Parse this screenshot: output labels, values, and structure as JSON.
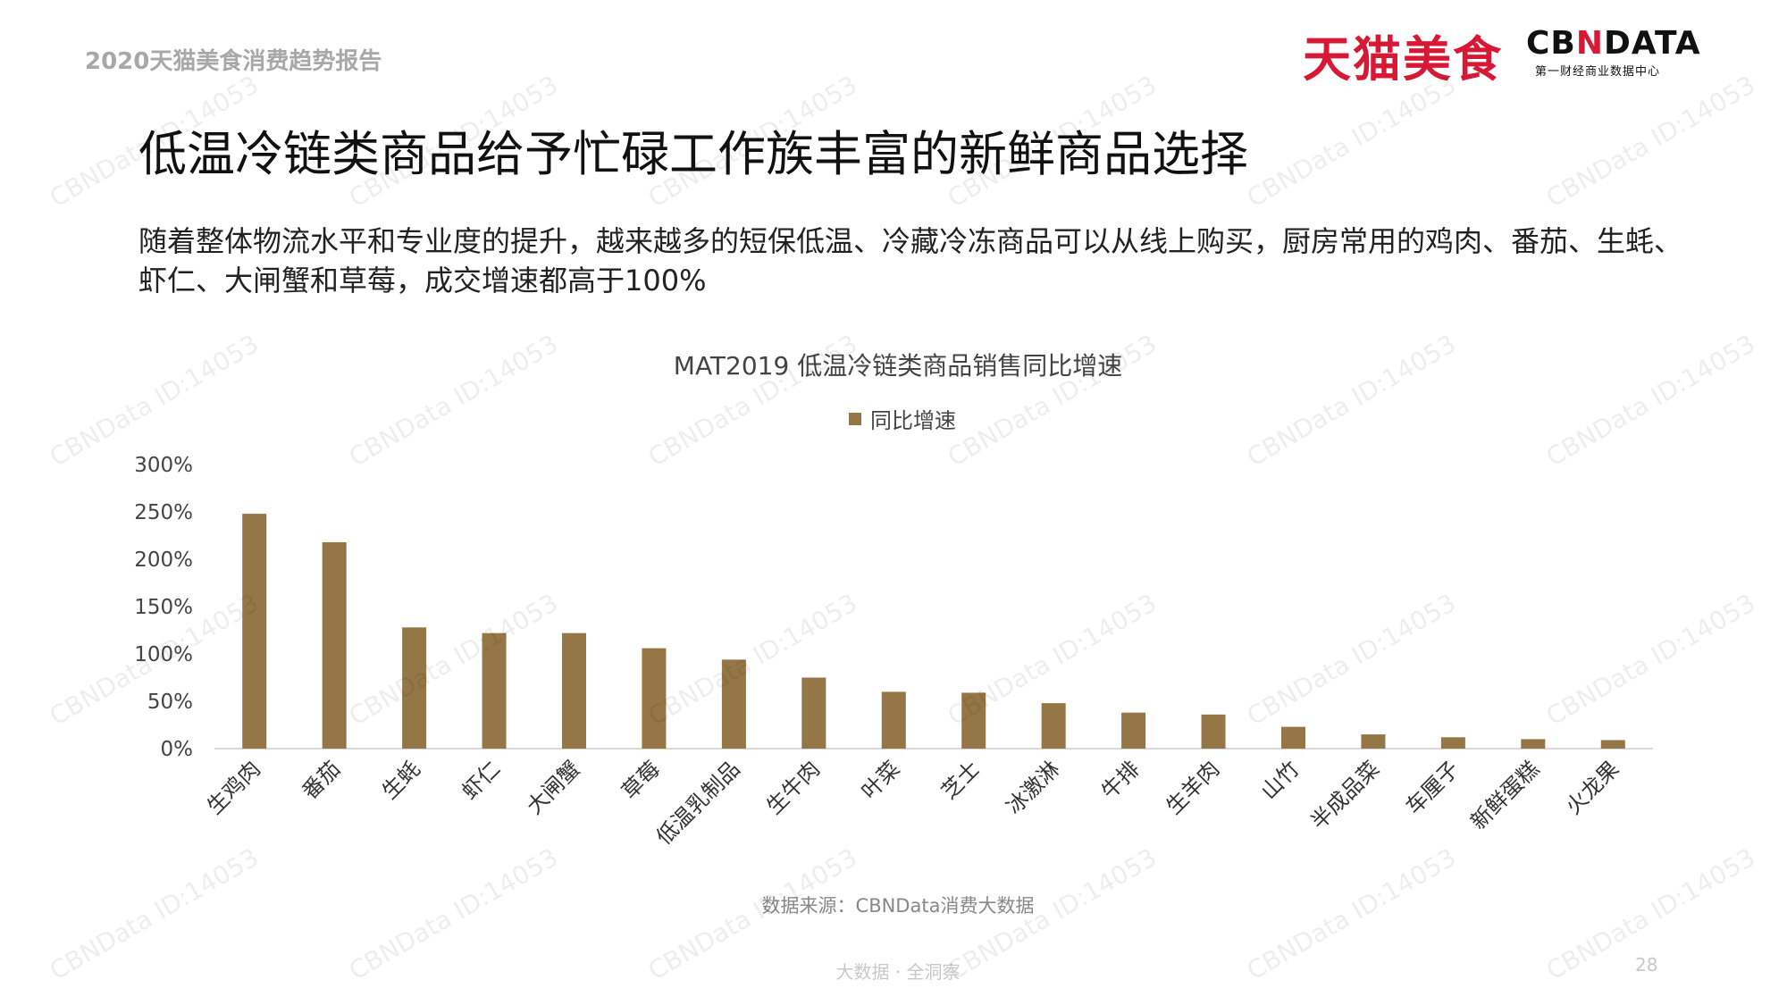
{
  "header": {
    "report_title": "2020天猫美食消费趋势报告",
    "brand_left": "天猫美食",
    "brand_right_prefix": "CB",
    "brand_right_mark": "N",
    "brand_right_suffix": "DATA",
    "brand_right_sub": "第一财经商业数据中心"
  },
  "headline": "低温冷链类商品给予忙碌工作族丰富的新鲜商品选择",
  "intro": "随着整体物流水平和专业度的提升，越来越多的短保低温、冷藏冷冻商品可以从线上购买，厨房常用的鸡肉、番茄、生蚝、虾仁、大闸蟹和草莓，成交增速都高于100%",
  "chart_data": {
    "type": "bar",
    "title": "MAT2019 低温冷链类商品销售同比增速",
    "legend_position": "top",
    "grid": false,
    "categories": [
      "生鸡肉",
      "番茄",
      "生蚝",
      "虾仁",
      "大闸蟹",
      "草莓",
      "低温乳制品",
      "生牛肉",
      "叶菜",
      "芝士",
      "冰激淋",
      "牛排",
      "生羊肉",
      "山竹",
      "半成品菜",
      "车厘子",
      "新鲜蛋糕",
      "火龙果"
    ],
    "series": [
      {
        "name": "同比增速",
        "color": "#957646",
        "values": [
          248,
          218,
          128,
          122,
          122,
          106,
          94,
          75,
          60,
          59,
          48,
          38,
          36,
          23,
          15,
          12,
          10,
          9
        ]
      }
    ],
    "ylim": [
      0,
      300
    ],
    "yticks": [
      0,
      50,
      100,
      150,
      200,
      250,
      300
    ],
    "ytick_labels": [
      "0%",
      "50%",
      "100%",
      "150%",
      "200%",
      "250%",
      "300%"
    ],
    "xlabel": "",
    "ylabel": ""
  },
  "source": "数据来源：CBNData消费大数据",
  "footer": "大数据 · 全洞察",
  "page_number": "28",
  "watermark_text": "CBNData ID:14053"
}
